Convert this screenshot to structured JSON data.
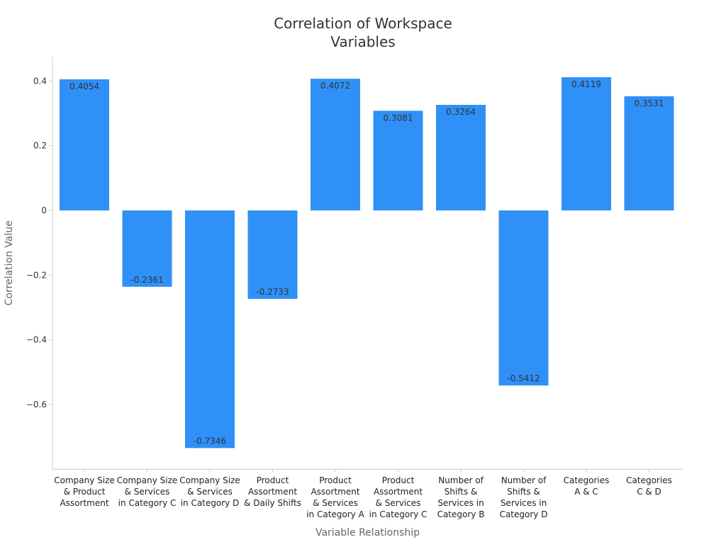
{
  "chart_data": {
    "type": "bar",
    "title": [
      "Correlation of Workspace",
      "Variables"
    ],
    "xlabel": "Variable Relationship",
    "ylabel": "Correlation Value",
    "ylim": [
      -0.8,
      0.475
    ],
    "yticks": [
      -0.6,
      -0.4,
      -0.2,
      0,
      0.2,
      0.4
    ],
    "ytick_labels": [
      "−0.6",
      "−0.4",
      "−0.2",
      "0",
      "0.2",
      "0.4"
    ],
    "grid": false,
    "bar_color": "#2f90f7",
    "categories": [
      [
        "Company Size",
        "& Product",
        "Assortment"
      ],
      [
        "Company Size",
        "& Services",
        "in Category C"
      ],
      [
        "Company Size",
        "& Services",
        "in Category D"
      ],
      [
        "Product",
        "Assortment",
        "& Daily Shifts"
      ],
      [
        "Product",
        "Assortment",
        "& Services",
        "in Category A"
      ],
      [
        "Product",
        "Assortment",
        "& Services",
        "in Category C"
      ],
      [
        "Number of",
        "Shifts &",
        "Services in",
        "Category B"
      ],
      [
        "Number of",
        "Shifts &",
        "Services in",
        "Category D"
      ],
      [
        "Categories",
        "A & C"
      ],
      [
        "Categories",
        "C & D"
      ]
    ],
    "values": [
      0.4054,
      -0.2361,
      -0.7346,
      -0.2733,
      0.4072,
      0.3081,
      0.3264,
      -0.5412,
      0.4119,
      0.3531
    ],
    "data_labels": [
      "0.4054",
      "-0.2361",
      "-0.7346",
      "-0.2733",
      "0.4072",
      "0.3081",
      "0.3264",
      "-0.5412",
      "0.4119",
      "0.3531"
    ]
  }
}
